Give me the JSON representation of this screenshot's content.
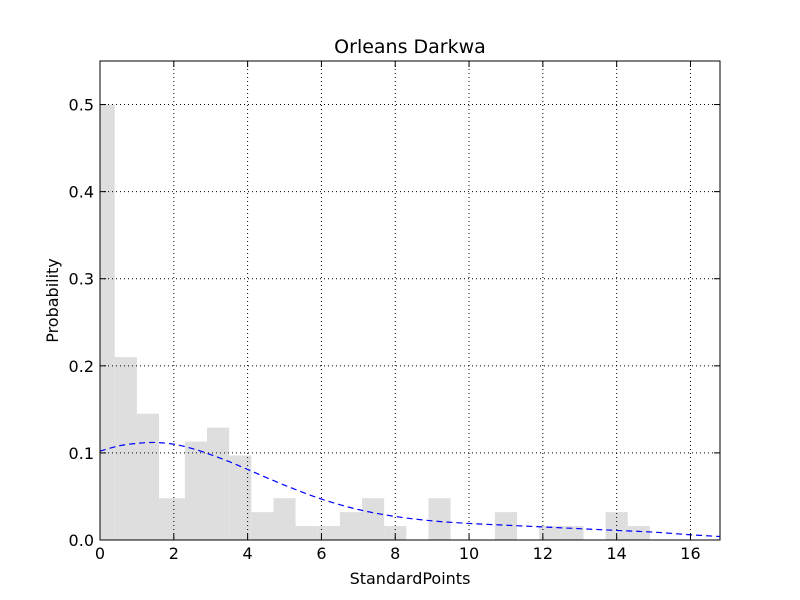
{
  "chart_data": {
    "type": "bar",
    "title": "Orleans Darkwa",
    "xlabel": "StandardPoints",
    "ylabel": "Probability",
    "xlim": [
      0,
      16.8
    ],
    "ylim": [
      0,
      0.55
    ],
    "x_ticks": [
      0,
      2,
      4,
      6,
      8,
      10,
      12,
      14,
      16
    ],
    "y_ticks": [
      0.0,
      0.1,
      0.2,
      0.3,
      0.4,
      0.5
    ],
    "x_tick_labels": [
      "0",
      "2",
      "4",
      "6",
      "8",
      "10",
      "12",
      "14",
      "16"
    ],
    "y_tick_labels": [
      "0.0",
      "0.1",
      "0.2",
      "0.3",
      "0.4",
      "0.5"
    ],
    "grid": true,
    "histogram": {
      "bin_edges": [
        0,
        0.4,
        1.0,
        1.6,
        2.3,
        2.9,
        3.5,
        4.1,
        4.7,
        5.3,
        5.9,
        6.5,
        7.1,
        7.7,
        8.3,
        8.9,
        9.5,
        10.1,
        10.7,
        11.3,
        11.9,
        12.5,
        13.1,
        13.7,
        14.3,
        14.9,
        15.5
      ],
      "values": [
        0.5,
        0.21,
        0.145,
        0.048,
        0.113,
        0.129,
        0.097,
        0.032,
        0.048,
        0.016,
        0.016,
        0.032,
        0.048,
        0.016,
        0.0,
        0.048,
        0.0,
        0.0,
        0.032,
        0.0,
        0.016,
        0.016,
        0.0,
        0.032,
        0.016,
        0.0
      ],
      "color": "#dedede"
    },
    "curve": {
      "style": "dashed",
      "color": "#0000ff",
      "x": [
        0,
        0.5,
        1.0,
        1.5,
        2.0,
        2.5,
        3.0,
        3.5,
        4.0,
        5.0,
        6.0,
        7.0,
        8.0,
        9.0,
        10.0,
        11.0,
        12.0,
        13.0,
        14.0,
        15.0,
        16.0,
        16.8
      ],
      "y": [
        0.102,
        0.108,
        0.111,
        0.112,
        0.11,
        0.105,
        0.098,
        0.09,
        0.081,
        0.063,
        0.047,
        0.035,
        0.027,
        0.022,
        0.019,
        0.017,
        0.015,
        0.013,
        0.011,
        0.009,
        0.006,
        0.004
      ]
    }
  }
}
